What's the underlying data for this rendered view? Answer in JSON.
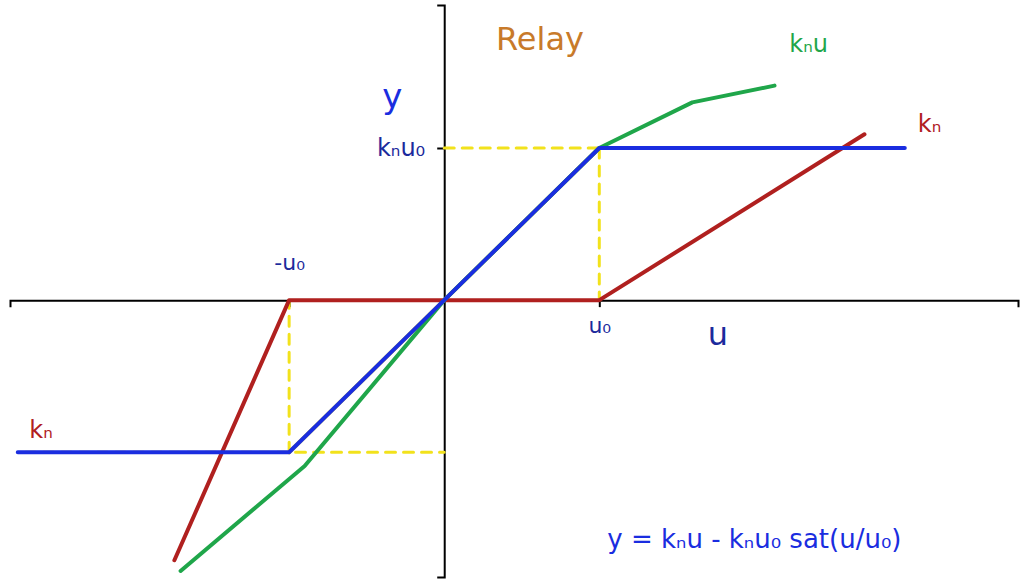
{
  "chart_data": {
    "type": "line",
    "title": "Relay",
    "xlabel": "u",
    "ylabel": "y",
    "xlim": [
      -2.8,
      3.7
    ],
    "ylim": [
      -1.82,
      1.94
    ],
    "xticks": [
      {
        "value": -1,
        "label": "-u₀"
      },
      {
        "value": 1,
        "label": "u₀"
      }
    ],
    "yticks": [
      {
        "value": 1,
        "label": "kₙu₀"
      }
    ],
    "grid": false,
    "series": [
      {
        "color": "#f2e21c",
        "line_style": "dashed",
        "x": [
          0,
          3.0
        ],
        "values": [
          1,
          1
        ]
      },
      {
        "color": "#f2e21c",
        "line_style": "dashed",
        "x": [
          1,
          1
        ],
        "values": [
          1,
          0
        ]
      },
      {
        "color": "#f2e21c",
        "line_style": "dashed",
        "x": [
          -1,
          -1
        ],
        "values": [
          -1,
          0
        ]
      },
      {
        "color": "#f2e21c",
        "line_style": "dashed",
        "x": [
          -2.7,
          0
        ],
        "values": [
          -1,
          -1
        ]
      },
      {
        "color": "#f2e21c",
        "line_style": "solid",
        "x": [
          -1,
          1
        ],
        "values": [
          -1,
          1
        ]
      },
      {
        "color": "#b0201f",
        "line_style": "solid",
        "x": [
          -1.74,
          -1,
          0,
          1,
          2.71
        ],
        "values": [
          -1.71,
          0,
          0,
          0,
          1.09
        ]
      },
      {
        "color": "#1fa64a",
        "line_style": "solid",
        "x": [
          -1.7,
          -0.9,
          0,
          1,
          1.6,
          2.13
        ],
        "values": [
          -1.78,
          -1.09,
          0,
          1,
          1.3,
          1.41
        ]
      },
      {
        "color": "#1a2de0",
        "line_style": "solid",
        "x": [
          -2.75,
          -1,
          0,
          1,
          2.97
        ],
        "values": [
          -1,
          -1,
          0,
          1,
          1
        ]
      }
    ],
    "annotations": [
      {
        "text": "kₙu",
        "x": 2.35,
        "y": 1.68,
        "color": "#1fa64a"
      },
      {
        "text": "kₙ",
        "x": 3.13,
        "y": 1.15,
        "color": "#b0201f"
      },
      {
        "text": "kₙ",
        "x": -2.6,
        "y": -0.86,
        "color": "#b0201f"
      },
      {
        "text": "y = kₙu - kₙu₀ sat(u/u₀)",
        "x": 2.0,
        "y": -1.58,
        "color": "#1a2de0"
      }
    ]
  }
}
